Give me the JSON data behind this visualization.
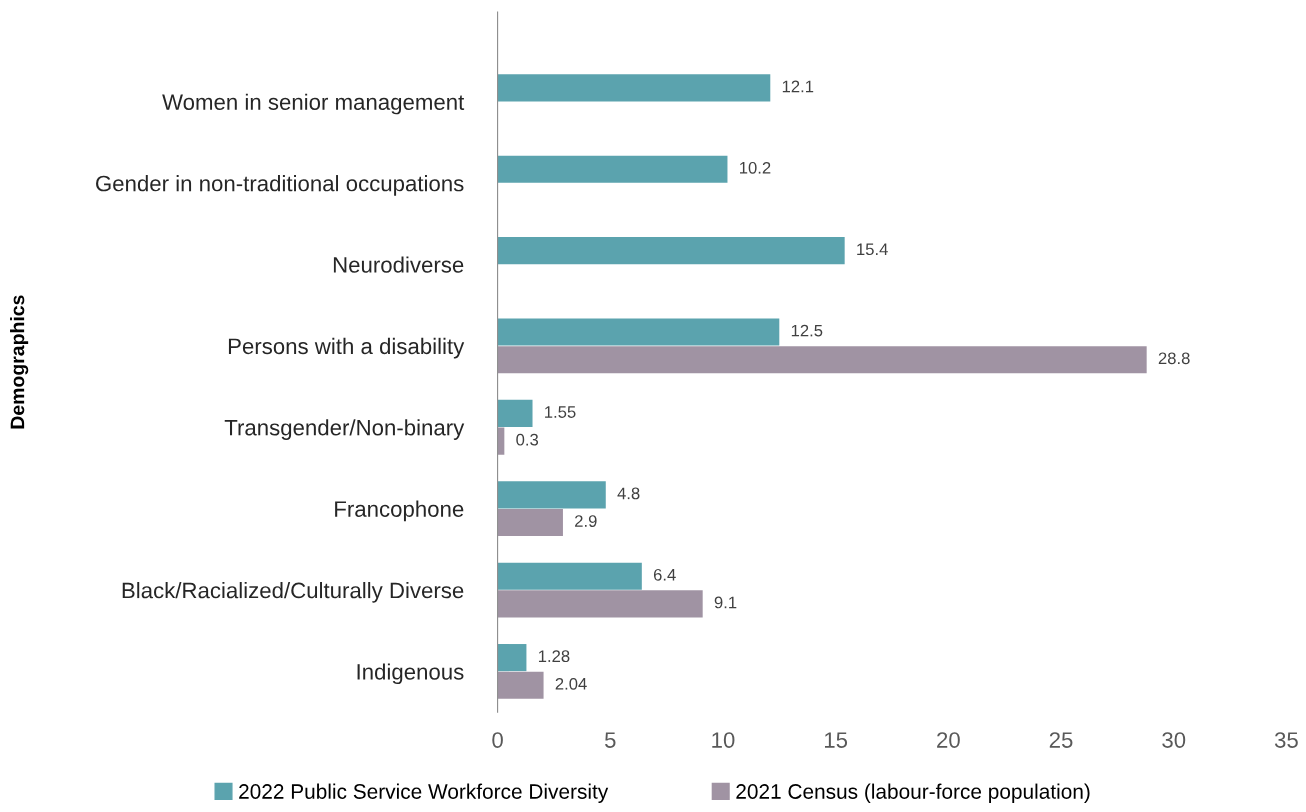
{
  "chart_data": {
    "type": "bar",
    "orientation": "horizontal",
    "ylabel": "Demographics",
    "categories": [
      "Women in senior management",
      "Gender in non-traditional occupations",
      "Neurodiverse",
      "Persons with a disability",
      "Transgender/Non-binary",
      "Francophone",
      "Black/Racialized/Culturally Diverse",
      "Indigenous"
    ],
    "series": [
      {
        "name": "2022 Public Service Workforce Diversity",
        "color": "#5ba3ae",
        "values": [
          12.1,
          10.2,
          15.4,
          12.5,
          1.55,
          4.8,
          6.4,
          1.28
        ]
      },
      {
        "name": "2021 Census (labour-force population)",
        "color": "#a093a3",
        "values": [
          null,
          null,
          null,
          28.8,
          0.3,
          2.9,
          9.1,
          2.04
        ]
      }
    ],
    "xlim": [
      0,
      35
    ],
    "xticks": [
      0,
      5,
      10,
      15,
      20,
      25,
      30,
      35
    ],
    "grid": false,
    "legend": "bottom",
    "data_labels": true
  }
}
